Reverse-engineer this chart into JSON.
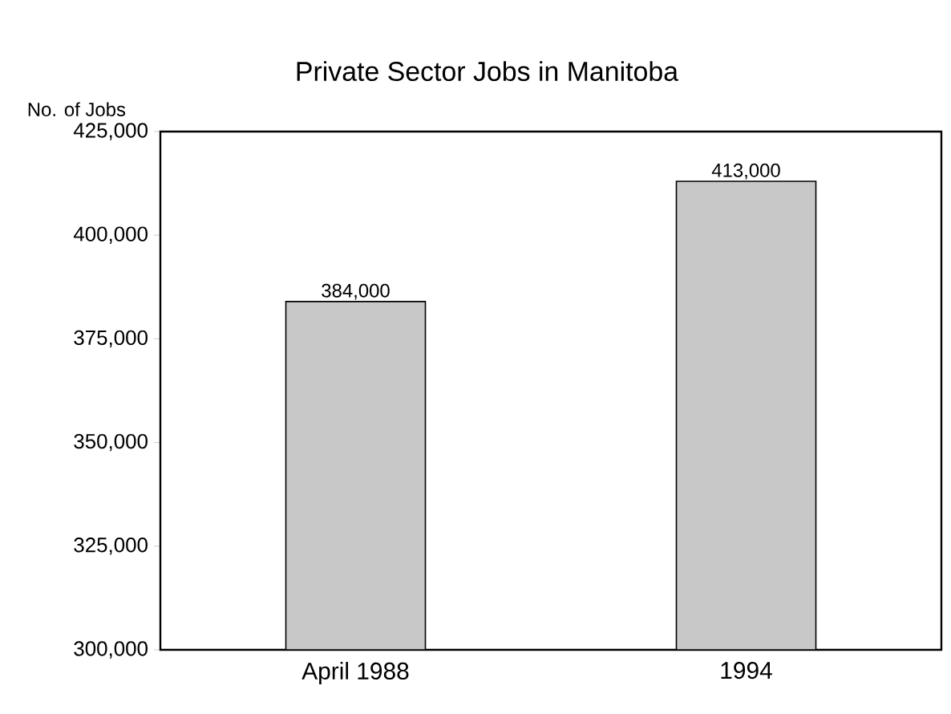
{
  "chart_data": {
    "type": "bar",
    "title": "Private Sector Jobs in Manitoba",
    "ylabel": "No. of Jobs",
    "categories": [
      "April 1988",
      "1994"
    ],
    "values": [
      384000,
      413000
    ],
    "value_labels": [
      "384,000",
      "413,000"
    ],
    "color": "#c8c8c8",
    "ylim": [
      300000,
      425000
    ],
    "yticks": [
      {
        "value": 300000,
        "label": "300,000"
      },
      {
        "value": 325000,
        "label": "325,000"
      },
      {
        "value": 350000,
        "label": "350,000"
      },
      {
        "value": 375000,
        "label": "375,000"
      },
      {
        "value": 400000,
        "label": "400,000"
      },
      {
        "value": 425000,
        "label": "425,000"
      }
    ],
    "grid": false
  }
}
